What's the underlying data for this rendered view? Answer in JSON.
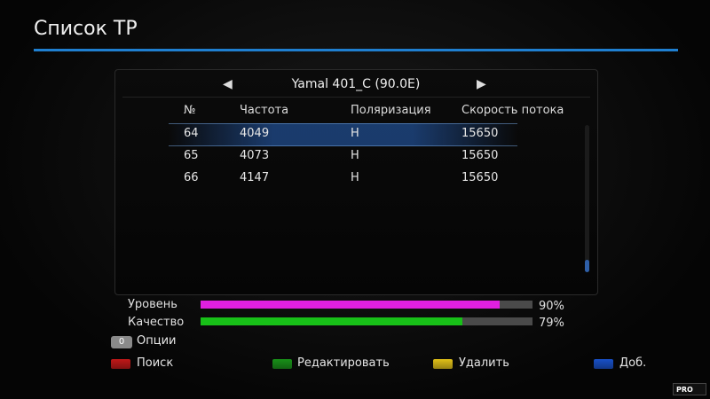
{
  "title": "Список ТР",
  "satellite": {
    "name": "Yamal 401_C (90.0E)"
  },
  "table": {
    "headers": [
      "№",
      "Частота",
      "Поляризация",
      "Скорость потока"
    ],
    "rows": [
      {
        "num": "64",
        "freq": "4049",
        "pol": "H",
        "rate": "15650",
        "selected": true
      },
      {
        "num": "65",
        "freq": "4073",
        "pol": "H",
        "rate": "15650",
        "selected": false
      },
      {
        "num": "66",
        "freq": "4147",
        "pol": "H",
        "rate": "15650",
        "selected": false
      }
    ]
  },
  "meters": {
    "level": {
      "label": "Уровень",
      "value": "90%",
      "fraction": 0.9,
      "color": "#e020e0"
    },
    "quality": {
      "label": "Качество",
      "value": "79%",
      "fraction": 0.79,
      "color": "#18c018"
    }
  },
  "options": {
    "key": "0",
    "label": "Опции"
  },
  "function_keys": [
    {
      "label": "Поиск",
      "color": "#c01818"
    },
    {
      "label": "Редактировать",
      "color": "#189018"
    },
    {
      "label": "Удалить",
      "color": "#e0c018"
    },
    {
      "label": "Доб.",
      "color": "#1850c8"
    }
  ],
  "logo_text": "PRO"
}
